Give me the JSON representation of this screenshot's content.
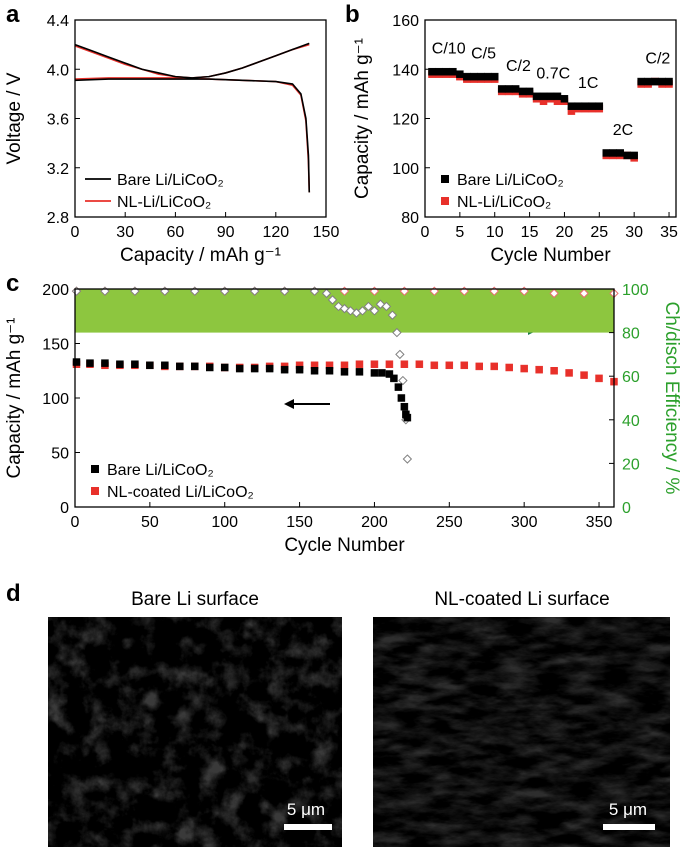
{
  "panel_labels": [
    "a",
    "b",
    "c",
    "d"
  ],
  "chart_data": [
    {
      "type": "line",
      "xlabel": "Capacity / mAh g⁻¹",
      "ylabel": "Voltage / V",
      "xlim": [
        0,
        150
      ],
      "xticks": [
        0,
        30,
        60,
        90,
        120,
        150
      ],
      "ylim": [
        2.8,
        4.4
      ],
      "yticks": [
        2.8,
        3.2,
        3.6,
        {
          "value": 4,
          "label": "4.0"
        },
        4.4
      ],
      "legend": "lower left",
      "series": [
        {
          "name": "Bare Li/LiCoO₂",
          "color": "#000000",
          "x": [
            0,
            10,
            20,
            30,
            40,
            50,
            60,
            70,
            80,
            90,
            100,
            110,
            120,
            130,
            140,
            null,
            0,
            20,
            40,
            60,
            80,
            100,
            120,
            130,
            135,
            138,
            139.5,
            140
          ],
          "values": [
            4.2,
            4.15,
            4.1,
            4.05,
            4.0,
            3.97,
            3.94,
            3.93,
            3.94,
            3.97,
            4.01,
            4.06,
            4.11,
            4.16,
            4.21,
            null,
            3.91,
            3.92,
            3.92,
            3.92,
            3.92,
            3.91,
            3.9,
            3.88,
            3.8,
            3.6,
            3.3,
            3.0
          ]
        },
        {
          "name": "NL-Li/LiCoO₂",
          "color": "#e8302a",
          "x": [
            0,
            10,
            20,
            30,
            40,
            50,
            60,
            70,
            80,
            90,
            100,
            110,
            120,
            130,
            140,
            null,
            0,
            20,
            40,
            60,
            80,
            100,
            120,
            130,
            135,
            138,
            139.5,
            140
          ],
          "values": [
            4.19,
            4.14,
            4.09,
            4.04,
            4.0,
            3.96,
            3.94,
            3.93,
            3.94,
            3.97,
            4.01,
            4.06,
            4.11,
            4.16,
            4.2,
            null,
            3.92,
            3.93,
            3.93,
            3.93,
            3.92,
            3.91,
            3.9,
            3.87,
            3.79,
            3.58,
            3.25,
            3.0
          ]
        }
      ]
    },
    {
      "type": "scatter",
      "xlabel": "Cycle Number",
      "ylabel": "Capacity / mAh g⁻¹",
      "xlim": [
        0,
        36
      ],
      "xticks": [
        0,
        5,
        10,
        15,
        20,
        25,
        30,
        35
      ],
      "ylim": [
        80,
        160
      ],
      "yticks": [
        80,
        100,
        120,
        140,
        160
      ],
      "legend": "lower left",
      "annotations": [
        "C/10",
        "C/5",
        "C/2",
        "0.7C",
        "1C",
        "2C",
        "C/2"
      ],
      "series": [
        {
          "name": "Bare Li/LiCoO₂",
          "color": "#000000",
          "marker": "square",
          "filled": true,
          "x": [
            1,
            2,
            3,
            4,
            5,
            6,
            7,
            8,
            9,
            10,
            11,
            12,
            13,
            14,
            15,
            16,
            17,
            18,
            19,
            20,
            21,
            22,
            23,
            24,
            25,
            26,
            27,
            28,
            29,
            30,
            31,
            32,
            33,
            34,
            35
          ],
          "values": [
            139,
            139,
            139,
            139,
            138,
            137,
            137,
            137,
            137,
            137,
            132,
            132,
            132,
            131,
            131,
            129,
            129,
            129,
            129,
            128,
            125,
            125,
            125,
            125,
            125,
            106,
            106,
            106,
            105,
            105,
            135,
            135,
            135,
            135,
            135
          ]
        },
        {
          "name": "NL-Li/LiCoO₂",
          "color": "#e8302a",
          "marker": "square",
          "filled": true,
          "x": [
            1,
            2,
            3,
            4,
            5,
            6,
            7,
            8,
            9,
            10,
            11,
            12,
            13,
            14,
            15,
            16,
            17,
            18,
            19,
            20,
            21,
            22,
            23,
            24,
            25,
            26,
            27,
            28,
            29,
            30,
            31,
            32,
            33,
            34,
            35
          ],
          "values": [
            138,
            138,
            138,
            138,
            137,
            136,
            136,
            136,
            136,
            136,
            131,
            131,
            131,
            130,
            130,
            128,
            127,
            128,
            127,
            127,
            123,
            124,
            124,
            124,
            124,
            105,
            105,
            105,
            105,
            104,
            134,
            134,
            135,
            134,
            134
          ]
        }
      ]
    },
    {
      "type": "scatter",
      "xlabel": "Cycle Number",
      "ylabel": "Capacity / mAh g⁻¹",
      "y2label": "Ch/disch Efficiency / %",
      "y2_color": "#2ca02c",
      "y2_band": {
        "range": [
          80,
          100
        ],
        "color": "#8dc63f"
      },
      "xlim": [
        0,
        360
      ],
      "xticks": [
        0,
        50,
        100,
        150,
        200,
        250,
        300,
        350
      ],
      "ylim": [
        0,
        200
      ],
      "yticks": [
        0,
        50,
        100,
        150,
        200
      ],
      "y2lim": [
        0,
        100
      ],
      "y2ticks": [
        0,
        20,
        40,
        60,
        80,
        100
      ],
      "legend": "lower left",
      "series": [
        {
          "name": "Bare Li/LiCoO₂",
          "color": "#000000",
          "marker": "square",
          "filled": true,
          "x": [
            1,
            10,
            20,
            30,
            40,
            50,
            60,
            70,
            80,
            90,
            100,
            110,
            120,
            130,
            140,
            150,
            160,
            170,
            180,
            190,
            200,
            205,
            210,
            213,
            216,
            218,
            220,
            221,
            222
          ],
          "values": [
            133,
            132,
            132,
            131,
            131,
            130,
            130,
            129,
            129,
            128,
            128,
            127,
            127,
            127,
            126,
            126,
            125,
            125,
            124,
            124,
            123,
            123,
            122,
            118,
            110,
            100,
            92,
            85,
            82
          ]
        },
        {
          "name": "NL-coated Li/LiCoO₂",
          "color": "#e8302a",
          "marker": "square",
          "filled": true,
          "x": [
            1,
            10,
            20,
            30,
            40,
            50,
            60,
            70,
            80,
            90,
            100,
            110,
            120,
            130,
            140,
            150,
            160,
            170,
            180,
            190,
            200,
            210,
            220,
            230,
            240,
            250,
            260,
            270,
            280,
            290,
            300,
            310,
            320,
            330,
            340,
            350,
            360
          ],
          "values": [
            131,
            131,
            130,
            130,
            130,
            130,
            129,
            129,
            129,
            129,
            128,
            128,
            128,
            129,
            129,
            130,
            130,
            130,
            130,
            131,
            131,
            131,
            131,
            131,
            130,
            130,
            130,
            129,
            129,
            128,
            127,
            126,
            125,
            123,
            121,
            118,
            115
          ]
        },
        {
          "color": "#808080",
          "marker": "diamond",
          "filled": false,
          "axis": "y2",
          "x": [
            1,
            20,
            40,
            60,
            80,
            100,
            120,
            140,
            160,
            168,
            172,
            176,
            180,
            184,
            188,
            192,
            196,
            200,
            204,
            208,
            212,
            215,
            217,
            219,
            221,
            222
          ],
          "values": [
            99,
            99,
            99,
            99,
            99,
            99,
            99,
            99,
            99,
            98,
            95,
            92,
            91,
            90,
            89,
            90,
            92,
            90,
            93,
            92,
            88,
            80,
            70,
            58,
            40,
            22
          ]
        },
        {
          "color": "#e87070",
          "marker": "diamond",
          "filled": false,
          "axis": "y2",
          "x": [
            1,
            20,
            40,
            60,
            80,
            100,
            120,
            140,
            160,
            180,
            200,
            220,
            240,
            260,
            280,
            300,
            320,
            340,
            360
          ],
          "values": [
            99,
            99,
            99,
            99,
            99,
            99,
            99,
            99,
            99,
            99,
            99,
            99,
            99,
            99,
            99,
            99,
            98,
            98,
            98
          ]
        }
      ]
    }
  ],
  "images": [
    {
      "title": "Bare Li surface",
      "scale_bar": "5 μm"
    },
    {
      "title": "NL-coated Li surface",
      "scale_bar": "5 μm"
    }
  ]
}
